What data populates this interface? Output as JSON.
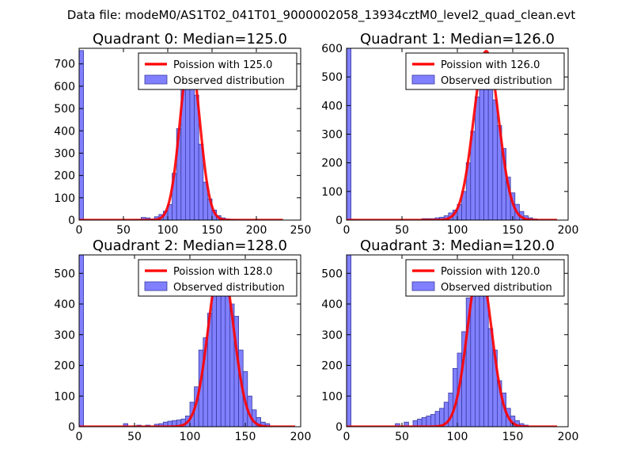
{
  "figure_title": "Data file: modeM0/AS1T02_041T01_9000002058_13934cztM0_level2_quad_clean.evt",
  "colors": {
    "bar_fill": "#8080ff",
    "bar_edge": "#3a3aa0",
    "poisson_line": "#ff0000",
    "axis": "#000000"
  },
  "chart_data": [
    {
      "type": "bar",
      "title": "Quadrant 0: Median=125.0",
      "xlim": [
        0,
        250
      ],
      "ylim": [
        0,
        770
      ],
      "xticks": [
        "0",
        "50",
        "100",
        "150",
        "200",
        "250"
      ],
      "xtick_values": [
        0,
        50,
        100,
        150,
        200,
        250
      ],
      "yticks": [
        "0",
        "100",
        "200",
        "300",
        "400",
        "500",
        "600",
        "700"
      ],
      "ytick_values": [
        0,
        100,
        200,
        300,
        400,
        500,
        600,
        700
      ],
      "legend": [
        "Poission with 125.0",
        "Observed distribution"
      ],
      "legend_position": "top-right",
      "bin_width": 5,
      "bins": [
        0,
        5,
        60,
        65,
        70,
        75,
        80,
        85,
        90,
        95,
        100,
        105,
        110,
        115,
        120,
        125,
        130,
        135,
        140,
        145,
        150,
        155,
        160,
        165,
        170,
        175
      ],
      "counts": [
        760,
        2,
        2,
        3,
        12,
        10,
        5,
        15,
        25,
        40,
        70,
        210,
        410,
        640,
        720,
        690,
        560,
        340,
        170,
        95,
        45,
        20,
        10,
        5,
        3,
        2
      ],
      "poisson_mu": 125,
      "poisson_peak": 735,
      "poisson_x_range": [
        0,
        230
      ]
    },
    {
      "type": "bar",
      "title": "Quadrant 1: Median=126.0",
      "xlim": [
        0,
        200
      ],
      "ylim": [
        0,
        600
      ],
      "xticks": [
        "0",
        "50",
        "100",
        "150",
        "200"
      ],
      "xtick_values": [
        0,
        50,
        100,
        150,
        200
      ],
      "yticks": [
        "0",
        "100",
        "200",
        "300",
        "400",
        "500",
        "600"
      ],
      "ytick_values": [
        0,
        100,
        200,
        300,
        400,
        500,
        600
      ],
      "legend": [
        "Poission with 126.0",
        "Observed distribution"
      ],
      "legend_position": "top-right",
      "bin_width": 4,
      "bins": [
        0,
        4,
        68,
        72,
        76,
        80,
        84,
        88,
        92,
        96,
        100,
        104,
        108,
        112,
        116,
        120,
        124,
        128,
        132,
        136,
        140,
        144,
        148,
        152,
        156,
        160,
        164,
        168
      ],
      "counts": [
        600,
        2,
        5,
        5,
        5,
        8,
        10,
        15,
        25,
        35,
        55,
        100,
        200,
        310,
        430,
        550,
        575,
        520,
        420,
        330,
        250,
        150,
        95,
        55,
        30,
        15,
        8,
        4
      ],
      "poisson_mu": 126,
      "poisson_peak": 590,
      "poisson_x_range": [
        0,
        190
      ]
    },
    {
      "type": "bar",
      "title": "Quadrant 2: Median=128.0",
      "xlim": [
        0,
        200
      ],
      "ylim": [
        0,
        560
      ],
      "xticks": [
        "0",
        "50",
        "100",
        "150",
        "200"
      ],
      "xtick_values": [
        0,
        50,
        100,
        150,
        200
      ],
      "yticks": [
        "0",
        "100",
        "200",
        "300",
        "400",
        "500"
      ],
      "ytick_values": [
        0,
        100,
        200,
        300,
        400,
        500
      ],
      "legend": [
        "Poission with 128.0",
        "Observed distribution"
      ],
      "legend_position": "top-right",
      "bin_width": 4,
      "bins": [
        0,
        40,
        52,
        60,
        68,
        72,
        76,
        80,
        84,
        88,
        92,
        96,
        100,
        104,
        108,
        112,
        116,
        120,
        124,
        128,
        132,
        136,
        140,
        144,
        148,
        152,
        156,
        160,
        164,
        168
      ],
      "counts": [
        560,
        10,
        5,
        5,
        8,
        10,
        15,
        18,
        20,
        22,
        25,
        35,
        80,
        130,
        250,
        290,
        370,
        450,
        510,
        530,
        470,
        400,
        360,
        250,
        180,
        100,
        55,
        30,
        15,
        10
      ],
      "poisson_mu": 128,
      "poisson_peak": 540,
      "poisson_x_range": [
        0,
        195
      ]
    },
    {
      "type": "bar",
      "title": "Quadrant 3: Median=120.0",
      "xlim": [
        0,
        200
      ],
      "ylim": [
        0,
        560
      ],
      "xticks": [
        "0",
        "50",
        "100",
        "150",
        "200"
      ],
      "xtick_values": [
        0,
        50,
        100,
        150,
        200
      ],
      "yticks": [
        "0",
        "100",
        "200",
        "300",
        "400",
        "500"
      ],
      "ytick_values": [
        0,
        100,
        200,
        300,
        400,
        500
      ],
      "legend": [
        "Poission with 120.0",
        "Observed distribution"
      ],
      "legend_position": "top-right",
      "bin_width": 4,
      "bins": [
        0,
        44,
        52,
        60,
        64,
        68,
        72,
        76,
        80,
        84,
        88,
        92,
        96,
        100,
        104,
        108,
        112,
        116,
        120,
        124,
        128,
        132,
        136,
        140,
        144,
        148,
        152,
        156,
        160
      ],
      "counts": [
        560,
        10,
        15,
        20,
        25,
        30,
        35,
        40,
        50,
        60,
        80,
        110,
        190,
        240,
        310,
        420,
        500,
        520,
        500,
        430,
        320,
        250,
        150,
        110,
        60,
        35,
        20,
        10,
        5
      ],
      "poisson_mu": 120,
      "poisson_peak": 520,
      "poisson_x_range": [
        0,
        190
      ]
    }
  ]
}
